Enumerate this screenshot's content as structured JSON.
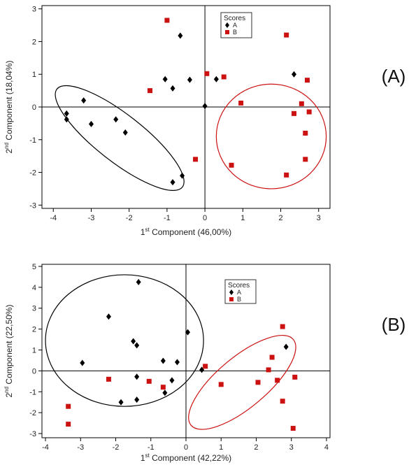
{
  "chart_data": [
    {
      "type": "scatter",
      "panel_label": "(A)",
      "xlabel_pre": "1",
      "xlabel_sup": "st",
      "xlabel_post": "  Component (46,00%)",
      "ylabel_pre": "2",
      "ylabel_sup": "nd",
      "ylabel_post": " Component (18,04%)",
      "xlim": [
        -4.3,
        3.3
      ],
      "ylim": [
        -3.1,
        3.1
      ],
      "xticks": [
        -4,
        -3,
        -2,
        -1,
        0,
        1,
        2,
        3
      ],
      "yticks": [
        -3,
        -2,
        -1,
        0,
        1,
        2,
        3
      ],
      "legend": {
        "title": "Scores",
        "placement": "top-center"
      },
      "series": [
        {
          "name": "A",
          "color": "#000000",
          "marker": "diamond",
          "points": [
            [
              -3.65,
              -0.2
            ],
            [
              -3.65,
              -0.38
            ],
            [
              -3.2,
              0.2
            ],
            [
              -3.0,
              -0.52
            ],
            [
              -2.35,
              -0.38
            ],
            [
              -2.1,
              -0.78
            ],
            [
              -1.05,
              0.85
            ],
            [
              -0.85,
              0.57
            ],
            [
              -0.65,
              2.18
            ],
            [
              -0.4,
              0.83
            ],
            [
              0.0,
              0.03
            ],
            [
              0.3,
              0.85
            ],
            [
              -0.6,
              -2.1
            ],
            [
              -0.85,
              -2.3
            ],
            [
              2.35,
              1.0
            ]
          ]
        },
        {
          "name": "B",
          "color": "#cc1111",
          "marker": "square",
          "points": [
            [
              -1.0,
              2.65
            ],
            [
              -1.45,
              0.5
            ],
            [
              -0.25,
              -1.6
            ],
            [
              0.05,
              1.02
            ],
            [
              0.5,
              0.92
            ],
            [
              0.7,
              -1.78
            ],
            [
              0.95,
              0.12
            ],
            [
              2.15,
              2.2
            ],
            [
              2.15,
              -2.08
            ],
            [
              2.35,
              -0.2
            ],
            [
              2.55,
              0.1
            ],
            [
              2.65,
              -0.8
            ],
            [
              2.65,
              -1.6
            ],
            [
              2.7,
              0.82
            ],
            [
              2.75,
              -0.15
            ]
          ]
        }
      ],
      "ellipses": [
        {
          "color": "#000000",
          "center": [
            -2.25,
            -0.95
          ],
          "rx": 2.1,
          "ry": 0.72,
          "angle_deg": 38
        },
        {
          "color": "#cc1111",
          "center": [
            1.75,
            -0.9
          ],
          "rx": 1.45,
          "ry": 1.6,
          "angle_deg": 0
        }
      ]
    },
    {
      "type": "scatter",
      "panel_label": "(B)",
      "xlabel_pre": "1",
      "xlabel_sup": "st",
      "xlabel_post": " Component (42,22%)",
      "ylabel_pre": "2",
      "ylabel_sup": "nd",
      "ylabel_post": " Component (22,50%)",
      "xlim": [
        -4.1,
        4.1
      ],
      "ylim": [
        -3.2,
        5.1
      ],
      "xticks": [
        -4,
        -3,
        -2,
        -1,
        0,
        1,
        2,
        3,
        4
      ],
      "yticks": [
        -3,
        -2,
        -1,
        0,
        1,
        2,
        3,
        4,
        5
      ],
      "legend": {
        "title": "Scores",
        "placement": "top-center"
      },
      "series": [
        {
          "name": "A",
          "color": "#000000",
          "marker": "diamond",
          "points": [
            [
              -2.95,
              0.38
            ],
            [
              -2.2,
              2.6
            ],
            [
              -1.85,
              -1.5
            ],
            [
              -1.5,
              1.42
            ],
            [
              -1.4,
              1.22
            ],
            [
              -1.35,
              4.25
            ],
            [
              -1.4,
              -0.28
            ],
            [
              -1.4,
              -1.38
            ],
            [
              -0.65,
              0.48
            ],
            [
              -0.6,
              -1.05
            ],
            [
              -0.4,
              -0.45
            ],
            [
              -0.25,
              0.42
            ],
            [
              0.05,
              1.85
            ],
            [
              0.45,
              0.05
            ],
            [
              2.85,
              1.15
            ]
          ]
        },
        {
          "name": "B",
          "color": "#cc1111",
          "marker": "square",
          "points": [
            [
              -3.35,
              -1.7
            ],
            [
              -3.35,
              -2.55
            ],
            [
              -2.2,
              -0.4
            ],
            [
              -1.05,
              -0.5
            ],
            [
              -0.65,
              -0.78
            ],
            [
              0.55,
              0.22
            ],
            [
              1.0,
              -0.65
            ],
            [
              2.05,
              -0.55
            ],
            [
              2.35,
              0.05
            ],
            [
              2.45,
              0.65
            ],
            [
              2.6,
              -0.45
            ],
            [
              2.75,
              2.12
            ],
            [
              2.75,
              -1.45
            ],
            [
              3.05,
              -2.75
            ],
            [
              3.1,
              -0.3
            ]
          ]
        }
      ],
      "ellipses": [
        {
          "color": "#000000",
          "center": [
            -1.75,
            1.45
          ],
          "rx": 2.25,
          "ry": 3.15,
          "angle_deg": 0
        },
        {
          "color": "#cc1111",
          "center": [
            1.6,
            -0.55
          ],
          "rx": 1.9,
          "ry": 1.2,
          "angle_deg": -40
        }
      ]
    }
  ]
}
